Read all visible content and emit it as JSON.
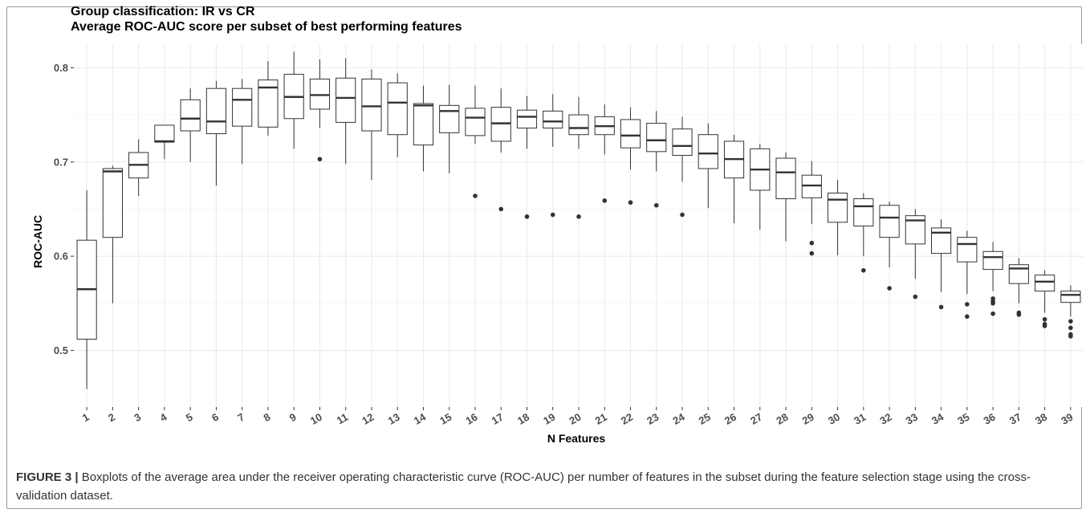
{
  "chart_data": {
    "type": "boxplot",
    "title": "Group classification: IR vs CR",
    "subtitle": "Average ROC-AUC score per subset of best performing features",
    "xlabel": "N Features",
    "ylabel": "ROC-AUC",
    "ylim": [
      0.44,
      0.825
    ],
    "yticks": [
      0.5,
      0.6,
      0.7,
      0.8
    ],
    "ytick_labels": [
      "0.5",
      "0.6",
      "0.7",
      "0.8"
    ],
    "grid": true,
    "categories": [
      "1",
      "2",
      "3",
      "4",
      "5",
      "6",
      "7",
      "8",
      "9",
      "10",
      "11",
      "12",
      "13",
      "14",
      "15",
      "16",
      "17",
      "18",
      "19",
      "20",
      "21",
      "22",
      "23",
      "24",
      "25",
      "26",
      "27",
      "28",
      "29",
      "30",
      "31",
      "32",
      "33",
      "34",
      "35",
      "36",
      "37",
      "38",
      "39"
    ],
    "boxes": [
      {
        "min": 0.459,
        "q1": 0.512,
        "median": 0.565,
        "q3": 0.617,
        "max": 0.67,
        "outliers": []
      },
      {
        "min": 0.55,
        "q1": 0.62,
        "median": 0.69,
        "q3": 0.693,
        "max": 0.696,
        "outliers": []
      },
      {
        "min": 0.664,
        "q1": 0.683,
        "median": 0.697,
        "q3": 0.71,
        "max": 0.724,
        "outliers": []
      },
      {
        "min": 0.703,
        "q1": 0.721,
        "median": 0.722,
        "q3": 0.739,
        "max": 0.739,
        "outliers": []
      },
      {
        "min": 0.7,
        "q1": 0.733,
        "median": 0.746,
        "q3": 0.766,
        "max": 0.778,
        "outliers": []
      },
      {
        "min": 0.675,
        "q1": 0.73,
        "median": 0.743,
        "q3": 0.778,
        "max": 0.786,
        "outliers": []
      },
      {
        "min": 0.698,
        "q1": 0.738,
        "median": 0.766,
        "q3": 0.778,
        "max": 0.788,
        "outliers": []
      },
      {
        "min": 0.728,
        "q1": 0.737,
        "median": 0.779,
        "q3": 0.787,
        "max": 0.807,
        "outliers": []
      },
      {
        "min": 0.714,
        "q1": 0.746,
        "median": 0.769,
        "q3": 0.793,
        "max": 0.817,
        "outliers": []
      },
      {
        "min": 0.736,
        "q1": 0.756,
        "median": 0.771,
        "q3": 0.788,
        "max": 0.809,
        "outliers": [
          0.703
        ]
      },
      {
        "min": 0.698,
        "q1": 0.742,
        "median": 0.768,
        "q3": 0.789,
        "max": 0.81,
        "outliers": []
      },
      {
        "min": 0.681,
        "q1": 0.733,
        "median": 0.759,
        "q3": 0.788,
        "max": 0.798,
        "outliers": []
      },
      {
        "min": 0.705,
        "q1": 0.729,
        "median": 0.763,
        "q3": 0.784,
        "max": 0.794,
        "outliers": []
      },
      {
        "min": 0.69,
        "q1": 0.718,
        "median": 0.76,
        "q3": 0.762,
        "max": 0.781,
        "outliers": []
      },
      {
        "min": 0.688,
        "q1": 0.731,
        "median": 0.754,
        "q3": 0.76,
        "max": 0.782,
        "outliers": []
      },
      {
        "min": 0.719,
        "q1": 0.728,
        "median": 0.747,
        "q3": 0.757,
        "max": 0.781,
        "outliers": [
          0.664
        ]
      },
      {
        "min": 0.71,
        "q1": 0.722,
        "median": 0.741,
        "q3": 0.758,
        "max": 0.778,
        "outliers": [
          0.65
        ]
      },
      {
        "min": 0.714,
        "q1": 0.736,
        "median": 0.748,
        "q3": 0.755,
        "max": 0.77,
        "outliers": [
          0.642
        ]
      },
      {
        "min": 0.716,
        "q1": 0.736,
        "median": 0.743,
        "q3": 0.754,
        "max": 0.772,
        "outliers": [
          0.644
        ]
      },
      {
        "min": 0.714,
        "q1": 0.729,
        "median": 0.736,
        "q3": 0.75,
        "max": 0.769,
        "outliers": [
          0.642
        ]
      },
      {
        "min": 0.708,
        "q1": 0.729,
        "median": 0.738,
        "q3": 0.748,
        "max": 0.761,
        "outliers": [
          0.659
        ]
      },
      {
        "min": 0.692,
        "q1": 0.715,
        "median": 0.728,
        "q3": 0.745,
        "max": 0.758,
        "outliers": [
          0.657
        ]
      },
      {
        "min": 0.69,
        "q1": 0.711,
        "median": 0.723,
        "q3": 0.741,
        "max": 0.754,
        "outliers": [
          0.654
        ]
      },
      {
        "min": 0.679,
        "q1": 0.707,
        "median": 0.717,
        "q3": 0.735,
        "max": 0.748,
        "outliers": [
          0.644
        ]
      },
      {
        "min": 0.651,
        "q1": 0.693,
        "median": 0.709,
        "q3": 0.729,
        "max": 0.741,
        "outliers": []
      },
      {
        "min": 0.635,
        "q1": 0.683,
        "median": 0.703,
        "q3": 0.722,
        "max": 0.729,
        "outliers": []
      },
      {
        "min": 0.628,
        "q1": 0.67,
        "median": 0.692,
        "q3": 0.714,
        "max": 0.719,
        "outliers": []
      },
      {
        "min": 0.616,
        "q1": 0.661,
        "median": 0.689,
        "q3": 0.704,
        "max": 0.71,
        "outliers": []
      },
      {
        "min": 0.634,
        "q1": 0.662,
        "median": 0.675,
        "q3": 0.686,
        "max": 0.701,
        "outliers": [
          0.614,
          0.603
        ]
      },
      {
        "min": 0.601,
        "q1": 0.636,
        "median": 0.66,
        "q3": 0.667,
        "max": 0.681,
        "outliers": []
      },
      {
        "min": 0.6,
        "q1": 0.632,
        "median": 0.653,
        "q3": 0.661,
        "max": 0.667,
        "outliers": [
          0.585
        ]
      },
      {
        "min": 0.588,
        "q1": 0.62,
        "median": 0.641,
        "q3": 0.654,
        "max": 0.658,
        "outliers": [
          0.566
        ]
      },
      {
        "min": 0.576,
        "q1": 0.613,
        "median": 0.638,
        "q3": 0.643,
        "max": 0.65,
        "outliers": [
          0.557
        ]
      },
      {
        "min": 0.562,
        "q1": 0.603,
        "median": 0.625,
        "q3": 0.63,
        "max": 0.639,
        "outliers": [
          0.546
        ]
      },
      {
        "min": 0.56,
        "q1": 0.594,
        "median": 0.613,
        "q3": 0.62,
        "max": 0.627,
        "outliers": [
          0.549,
          0.536
        ]
      },
      {
        "min": 0.563,
        "q1": 0.586,
        "median": 0.599,
        "q3": 0.605,
        "max": 0.615,
        "outliers": [
          0.555,
          0.552,
          0.55,
          0.539
        ]
      },
      {
        "min": 0.55,
        "q1": 0.571,
        "median": 0.587,
        "q3": 0.591,
        "max": 0.598,
        "outliers": [
          0.54,
          0.538
        ]
      },
      {
        "min": 0.54,
        "q1": 0.563,
        "median": 0.573,
        "q3": 0.58,
        "max": 0.585,
        "outliers": [
          0.533,
          0.528,
          0.526
        ]
      },
      {
        "min": 0.536,
        "q1": 0.551,
        "median": 0.559,
        "q3": 0.563,
        "max": 0.569,
        "outliers": [
          0.531,
          0.524,
          0.517,
          0.515
        ]
      }
    ]
  },
  "caption": {
    "label": "FIGURE 3 |",
    "text": " Boxplots of the average area under the receiver operating characteristic curve (ROC-AUC) per number of features in the subset during the feature selection stage using the cross-validation dataset."
  },
  "colors": {
    "panel_bg": "#ffffff",
    "grid": "#ebebeb",
    "box_stroke": "#333333",
    "outlier": "#333333",
    "tick_text": "#4d4d4d",
    "title_text": "#000000"
  }
}
